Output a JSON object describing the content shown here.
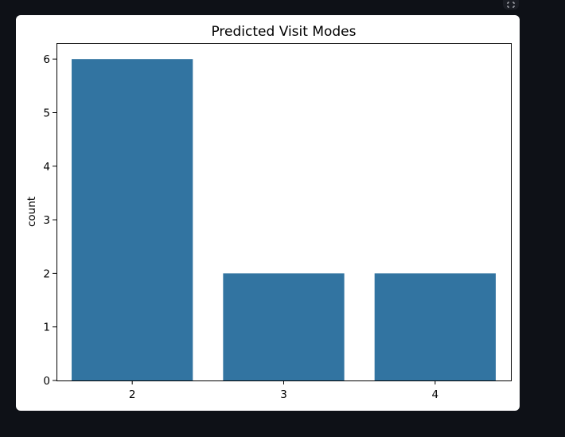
{
  "toolbar": {
    "fullscreen_icon": "expand-icon"
  },
  "colors": {
    "page_background": "#0e1117",
    "card_background": "#ffffff",
    "bar_color": "#3274a1",
    "axis_color": "#000000"
  },
  "chart_data": {
    "type": "bar",
    "title": "Predicted Visit Modes",
    "xlabel": "",
    "ylabel": "count",
    "categories": [
      "2",
      "3",
      "4"
    ],
    "values": [
      6,
      2,
      2
    ],
    "ylim": [
      0,
      6.3
    ],
    "yticks": [
      0,
      1,
      2,
      3,
      4,
      5,
      6
    ],
    "grid": false,
    "legend": "none"
  }
}
